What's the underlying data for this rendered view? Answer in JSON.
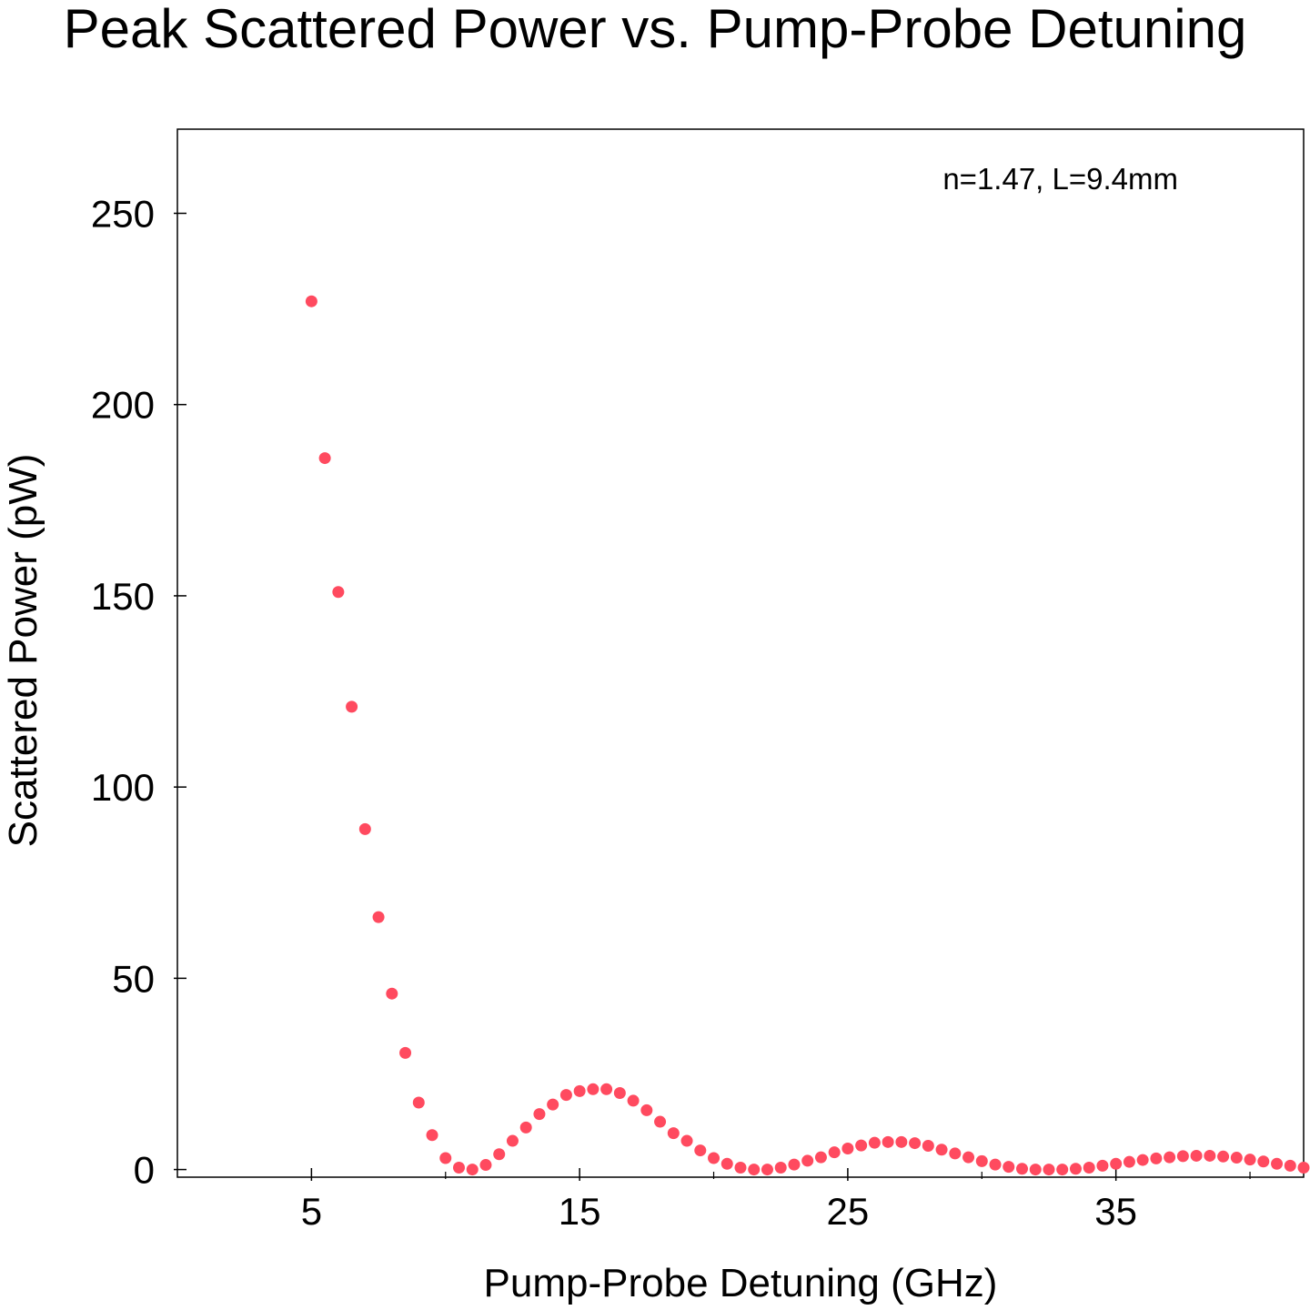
{
  "chart_data": {
    "type": "scatter",
    "title": "Peak Scattered Power vs. Pump-Probe Detuning",
    "xlabel": "Pump-Probe Detuning (GHz)",
    "ylabel": "Scattered Power (pW)",
    "annotation": "n=1.47, L=9.4mm",
    "xlim": [
      0,
      42
    ],
    "ylim": [
      -2,
      272
    ],
    "xticks": [
      5,
      15,
      25,
      35
    ],
    "xticks_minor": [
      10,
      20,
      30,
      40
    ],
    "yticks": [
      0,
      50,
      100,
      150,
      200,
      250
    ],
    "grid": false,
    "marker_color": "#ff4a5f",
    "series": [
      {
        "x": [
          5.0,
          5.5,
          6.0,
          6.5,
          7.0,
          7.5,
          8.0,
          8.5,
          9.0,
          9.5,
          10.0,
          10.5,
          11.0,
          11.5,
          12.0,
          12.5,
          13.0,
          13.5,
          14.0,
          14.5,
          15.0,
          15.5,
          16.0,
          16.5,
          17.0,
          17.5,
          18.0,
          18.5,
          19.0,
          19.5,
          20.0,
          20.5,
          21.0,
          21.5,
          22.0,
          22.5,
          23.0,
          23.5,
          24.0,
          24.5,
          25.0,
          25.5,
          26.0,
          26.5,
          27.0,
          27.5,
          28.0,
          28.5,
          29.0,
          29.5,
          30.0,
          30.5,
          31.0,
          31.5,
          32.0,
          32.5,
          33.0,
          33.5,
          34.0,
          34.5,
          35.0,
          35.5,
          36.0,
          36.5,
          37.0,
          37.5,
          38.0,
          38.5,
          39.0,
          39.5,
          40.0,
          40.5,
          41.0,
          41.5,
          42.0
        ],
        "y": [
          227.0,
          186.0,
          151.0,
          121.0,
          89.0,
          66.0,
          46.0,
          30.5,
          17.5,
          9.0,
          3.0,
          0.5,
          0.0,
          1.2,
          4.0,
          7.5,
          11.0,
          14.5,
          17.0,
          19.5,
          20.5,
          21.0,
          21.0,
          20.0,
          18.0,
          15.5,
          12.5,
          9.5,
          7.5,
          5.0,
          3.0,
          1.5,
          0.5,
          0.0,
          0.0,
          0.5,
          1.3,
          2.3,
          3.2,
          4.5,
          5.5,
          6.3,
          7.0,
          7.2,
          7.2,
          6.9,
          6.2,
          5.2,
          4.2,
          3.2,
          2.2,
          1.3,
          0.7,
          0.2,
          0.0,
          0.0,
          0.0,
          0.2,
          0.5,
          1.0,
          1.5,
          2.0,
          2.5,
          2.9,
          3.2,
          3.5,
          3.6,
          3.6,
          3.4,
          3.1,
          2.6,
          2.1,
          1.5,
          1.0,
          0.5
        ]
      }
    ]
  }
}
